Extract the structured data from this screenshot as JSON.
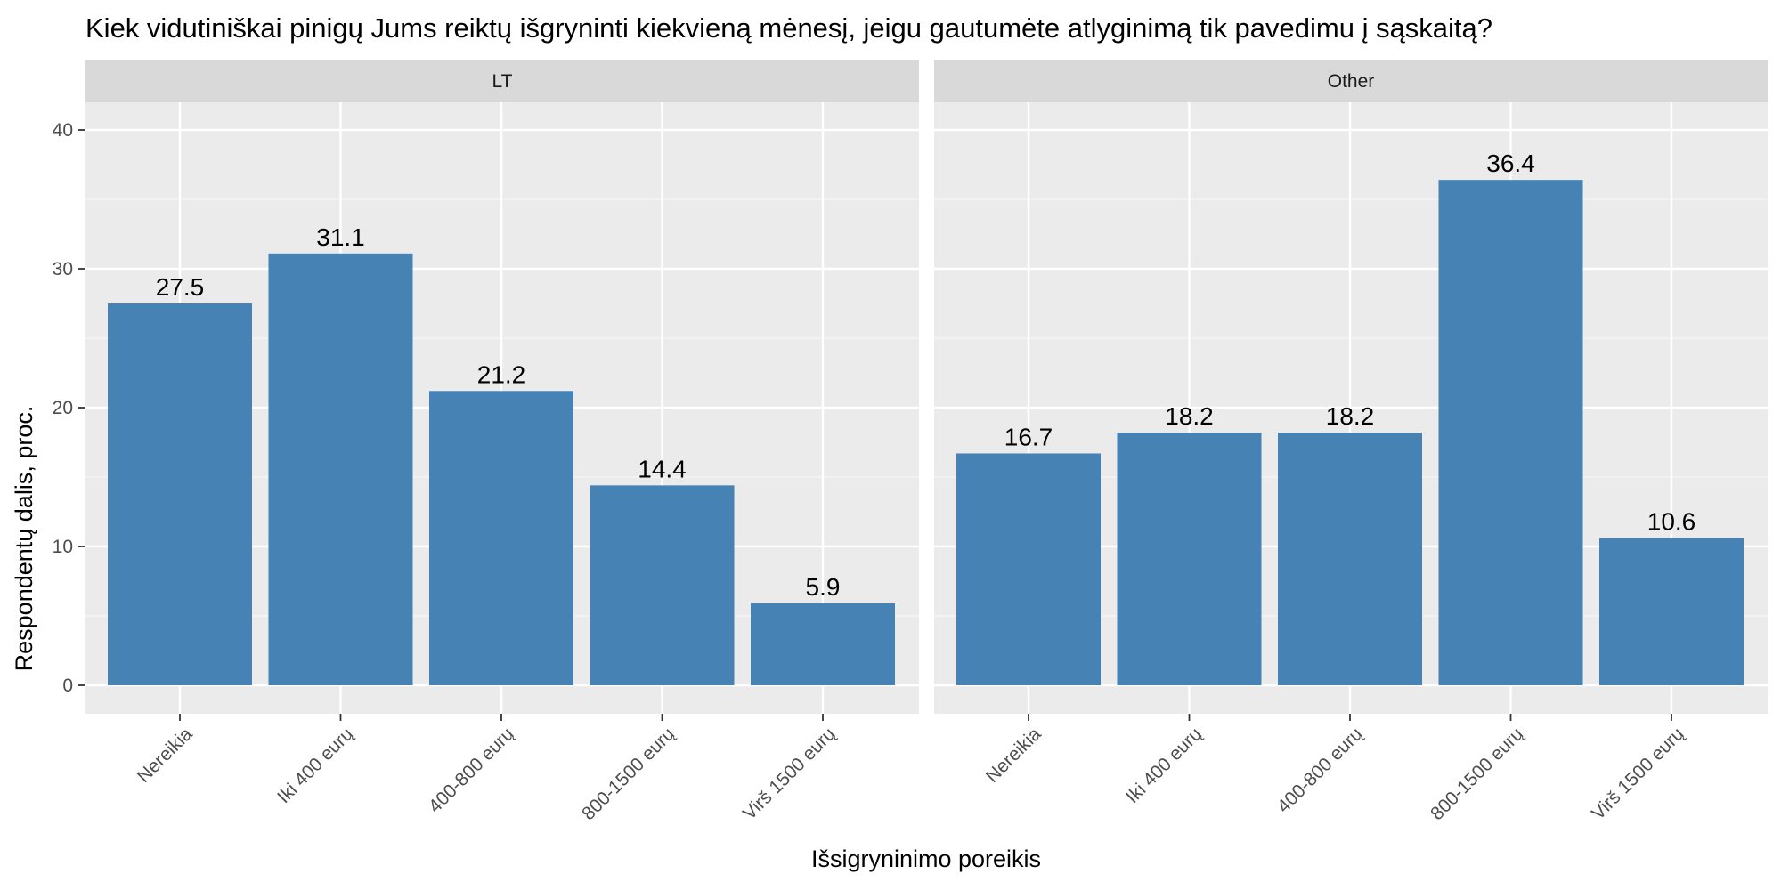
{
  "chart_data": {
    "type": "bar",
    "title": "Kiek vidutiniškai pinigų Jums reiktų išgryninti kiekvieną mėnesį, jeigu gautumėte atlyginimą tik pavedimu į sąskaitą?",
    "xlabel": "Išsigryninimo poreikis",
    "ylabel": "Respondentų dalis, proc.",
    "ylim": [
      0,
      40
    ],
    "yticks": [
      0,
      10,
      20,
      30,
      40
    ],
    "grid": true,
    "categories": [
      "Nereikia",
      "Iki 400 eurų",
      "400-800 eurų",
      "800-1500 eurų",
      "Virš 1500 eurų"
    ],
    "bar_color": "#4682B4",
    "panels": [
      {
        "name": "LT",
        "values": [
          27.5,
          31.1,
          21.2,
          14.4,
          5.9
        ],
        "labels": [
          "27.5",
          "31.1",
          "21.2",
          "14.4",
          "5.9"
        ]
      },
      {
        "name": "Other",
        "values": [
          16.7,
          18.2,
          18.2,
          36.4,
          10.6
        ],
        "labels": [
          "16.7",
          "18.2",
          "18.2",
          "36.4",
          "10.6"
        ]
      }
    ]
  }
}
